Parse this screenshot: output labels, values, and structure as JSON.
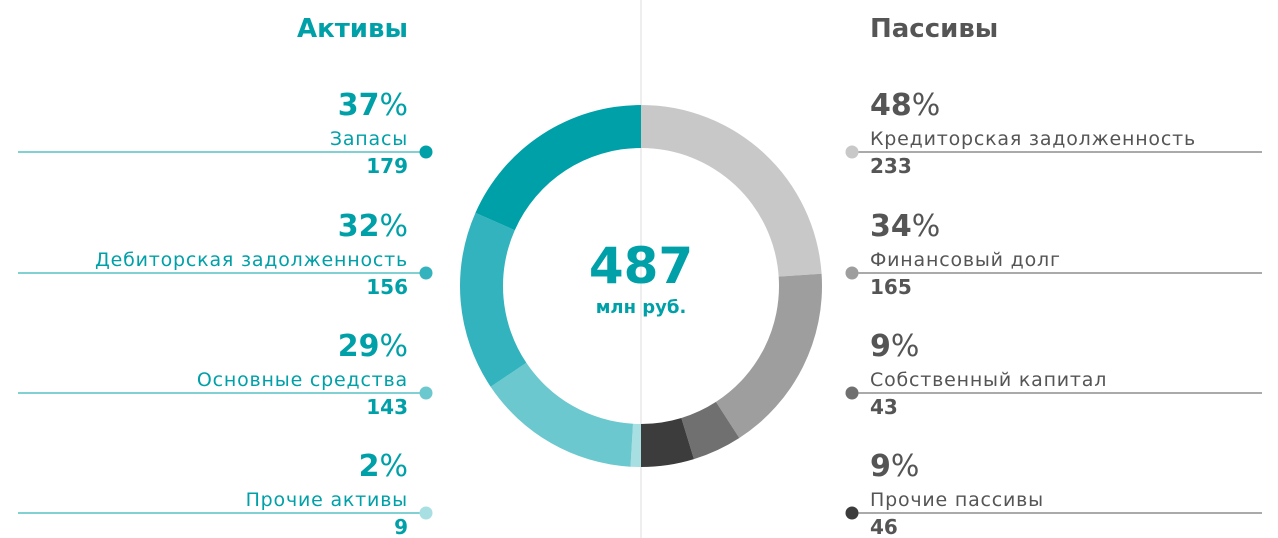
{
  "chart_data": {
    "type": "pie",
    "center_value": 487,
    "center_label": "млн руб.",
    "percent_unit": "%",
    "groups": [
      {
        "title": "Активы",
        "items": [
          {
            "name": "Запасы",
            "percent": 37,
            "value": 179,
            "color": "#00a0a8"
          },
          {
            "name": "Дебиторская задолженность",
            "percent": 32,
            "value": 156,
            "color": "#33b3bd"
          },
          {
            "name": "Основные средства",
            "percent": 29,
            "value": 143,
            "color": "#6bc8ce"
          },
          {
            "name": "Прочие активы",
            "percent": 2,
            "value": 9,
            "color": "#a8dfe2"
          }
        ]
      },
      {
        "title": "Пассивы",
        "items": [
          {
            "name": "Кредиторская задолженность",
            "percent": 48,
            "value": 233,
            "color": "#c8c8c8"
          },
          {
            "name": "Финансовый долг",
            "percent": 34,
            "value": 165,
            "color": "#9e9e9e"
          },
          {
            "name": "Собственный капитал",
            "percent": 9,
            "value": 43,
            "color": "#707070"
          },
          {
            "name": "Прочие пассивы",
            "percent": 9,
            "value": 46,
            "color": "#3c3c3c"
          }
        ]
      }
    ]
  }
}
